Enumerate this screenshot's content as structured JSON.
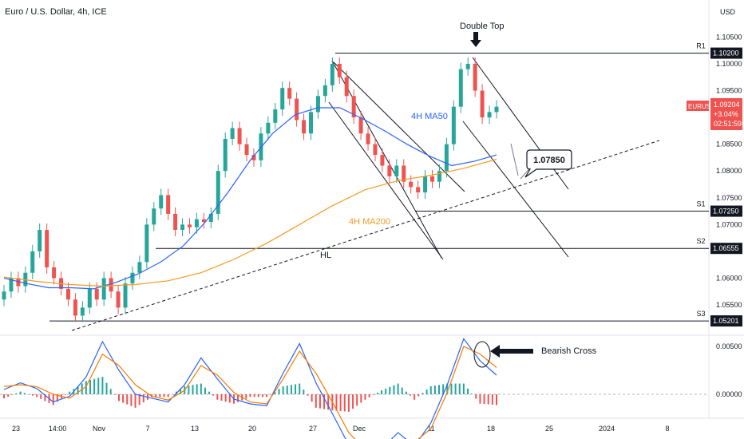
{
  "header": {
    "title": "Euro / U.S. Dollar, 4h, ICE",
    "currency": "USD"
  },
  "chart_data": [
    {
      "type": "candlestick",
      "symbol": "EURUSD",
      "title": "Euro / U.S. Dollar, 4h, ICE",
      "ylim": [
        1.049,
        1.108
      ],
      "y_ticks": [
        "1.10500",
        "1.10000",
        "1.09500",
        "1.09000",
        "1.08500",
        "1.08000",
        "1.07500",
        "1.07000",
        "1.06500",
        "1.06000",
        "1.05500"
      ],
      "x_ticks": [
        "23",
        "14:00",
        "Nov",
        "7",
        "13",
        "20",
        "27",
        "Dec",
        "11",
        "18",
        "25",
        "2024",
        "8"
      ],
      "price_tag": {
        "label": "EURUSD",
        "value": "1.09204",
        "change": "+3.04%",
        "timer": "02:51:59"
      },
      "colors": {
        "up": "#26a69a",
        "down": "#ef5350",
        "ma50": "#2962ff",
        "ma200": "#f59a23",
        "level": "#131722"
      },
      "grid": false,
      "closes": [
        1.0575,
        1.06,
        1.0585,
        1.061,
        1.065,
        1.069,
        1.062,
        1.06,
        1.058,
        1.056,
        1.053,
        1.0545,
        1.058,
        1.056,
        1.06,
        1.0575,
        1.0545,
        1.059,
        1.061,
        1.063,
        1.07,
        1.073,
        1.0755,
        1.072,
        1.069,
        1.07,
        1.0695,
        1.071,
        1.0705,
        1.072,
        1.08,
        1.086,
        1.088,
        1.085,
        1.083,
        1.082,
        1.087,
        1.089,
        1.0915,
        1.0955,
        1.0935,
        1.0895,
        1.087,
        1.091,
        1.094,
        1.096,
        1.1,
        1.0975,
        1.094,
        1.09,
        1.087,
        1.085,
        1.083,
        1.081,
        1.079,
        1.081,
        1.078,
        1.077,
        1.076,
        1.079,
        1.078,
        1.08,
        1.085,
        1.092,
        1.099,
        1.1,
        1.095,
        1.09,
        1.091,
        1.092
      ],
      "series": [
        {
          "name": "4H MA50",
          "values": [
            1.06,
            1.059,
            1.0582,
            1.0582,
            1.058,
            1.0592,
            1.0608,
            1.063,
            1.066,
            1.0705,
            1.076,
            1.082,
            1.087,
            1.0905,
            1.0918,
            1.0918,
            1.0898,
            1.0875,
            1.085,
            1.0828,
            1.081,
            1.0818,
            1.083
          ]
        },
        {
          "name": "4H MA200",
          "values": [
            1.0602,
            1.0594,
            1.0588,
            1.0585,
            1.0588,
            1.0595,
            1.061,
            1.0635,
            1.0665,
            1.07,
            1.0735,
            1.0765,
            1.0782,
            1.0792,
            1.0805,
            1.0822
          ]
        }
      ],
      "levels": [
        {
          "name": "R1",
          "value": 1.102,
          "label": "1.10200"
        },
        {
          "name": "S1",
          "value": 1.0725,
          "label": "1.07250"
        },
        {
          "name": "S2",
          "value": 1.06555,
          "label": "1.06555"
        },
        {
          "name": "S3",
          "value": 1.05201,
          "label": "1.05201"
        }
      ],
      "annotations": {
        "double_top": "Double Top",
        "ma50_label": "4H MA50",
        "ma200_label": "4H MA200",
        "hl_label": "HL",
        "target": "1.07850"
      }
    },
    {
      "type": "macd",
      "y_ticks": [
        "0.00500",
        "0.00000"
      ],
      "annotation": "Bearish Cross",
      "colors": {
        "macd": "#2962ff",
        "signal": "#f57c00",
        "hist_up": "#26a69a",
        "hist_down": "#ef5350"
      },
      "macd": [
        0.0005,
        0.0012,
        0.0006,
        -0.0008,
        -0.0002,
        0.0018,
        0.0055,
        0.0025,
        0.0,
        -0.0004,
        -0.0008,
        0.001,
        0.0038,
        0.0016,
        -0.0005,
        -0.001,
        -0.0012,
        0.0022,
        0.0053,
        0.0012,
        -0.002,
        -0.0053,
        -0.0062,
        -0.0057,
        -0.004,
        -0.0054,
        -0.003,
        0.001,
        0.0058,
        0.0035,
        0.002
      ],
      "signal": [
        0.0008,
        0.001,
        0.0008,
        0.0,
        -0.0004,
        0.0008,
        0.0042,
        0.003,
        0.001,
        -0.0002,
        -0.0006,
        0.0004,
        0.003,
        0.002,
        0.0002,
        -0.0008,
        -0.001,
        0.0016,
        0.0045,
        0.0022,
        -0.0008,
        -0.004,
        -0.0058,
        -0.006,
        -0.0048,
        -0.005,
        -0.0036,
        0.0002,
        0.005,
        0.0042,
        0.0028
      ]
    }
  ]
}
